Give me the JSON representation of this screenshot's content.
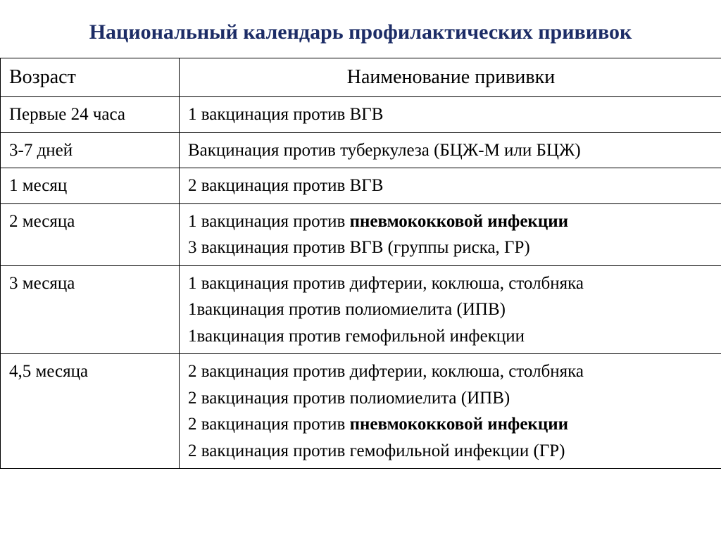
{
  "title": {
    "text": "Национальный календарь профилактических прививок",
    "color": "#1c2c66",
    "fontsize": 30
  },
  "table": {
    "header_fontsize": 28,
    "body_fontsize": 25,
    "border_color": "#000000",
    "text_color": "#000000",
    "columns": {
      "age": "Возраст",
      "name": "Наименование прививки"
    },
    "rows": [
      {
        "age": "Первые  24 часа",
        "items": [
          {
            "pre": "1 вакцинация против ВГВ",
            "bold": "",
            "post": ""
          }
        ]
      },
      {
        "age": "3-7 дней",
        "items": [
          {
            "pre": "Вакцинация против туберкулеза (БЦЖ-М или БЦЖ)",
            "bold": "",
            "post": ""
          }
        ]
      },
      {
        "age": "1 месяц",
        "items": [
          {
            "pre": "2 вакцинация  против ВГВ",
            "bold": "",
            "post": ""
          }
        ]
      },
      {
        "age": "2 месяца",
        "items": [
          {
            "pre": "1 вакцинация против ",
            "bold": "пневмококковой инфекции",
            "post": ""
          },
          {
            "pre": "3 вакцинация  против ВГВ (группы риска, ГР)",
            "bold": "",
            "post": ""
          }
        ]
      },
      {
        "age": "3 месяца",
        "items": [
          {
            "pre": "1 вакцинация против дифтерии, коклюша, столбняка",
            "bold": "",
            "post": ""
          },
          {
            "pre": "1вакцинация против полиомиелита (ИПВ)",
            "bold": "",
            "post": ""
          },
          {
            "pre": "1вакцинация против гемофильной инфекции",
            "bold": "",
            "post": ""
          }
        ]
      },
      {
        "age": "4,5 месяца",
        "items": [
          {
            "pre": "2 вакцинация против дифтерии, коклюша, столбняка",
            "bold": "",
            "post": ""
          },
          {
            "pre": "2 вакцинация против полиомиелита (ИПВ)",
            "bold": "",
            "post": ""
          },
          {
            "pre": "2 вакцинация против ",
            "bold": "пневмококковой инфекции",
            "post": ""
          },
          {
            "pre": "2 вакцинация против гемофильной инфекции (ГР)",
            "bold": "",
            "post": ""
          }
        ]
      }
    ]
  }
}
